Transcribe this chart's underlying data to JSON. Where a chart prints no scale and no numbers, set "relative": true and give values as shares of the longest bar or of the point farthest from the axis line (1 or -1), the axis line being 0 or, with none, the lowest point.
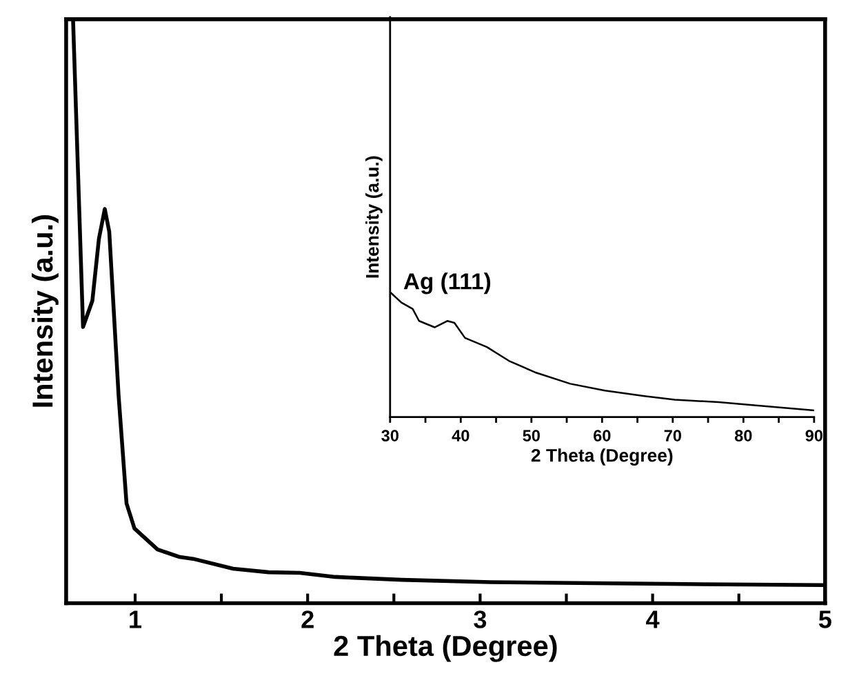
{
  "chart_data": [
    {
      "type": "line",
      "relative": true,
      "xlabel": "2 Theta (Degree)",
      "ylabel": "Intensity (a.u.)",
      "xlim": [
        0.6,
        5.0
      ],
      "xticks": [
        1,
        {
          "value": 1.5,
          "label": null
        },
        2,
        {
          "value": 2.5,
          "label": null
        },
        3,
        {
          "value": 3.5,
          "label": null
        },
        4,
        {
          "value": 4.5,
          "label": null
        },
        5
      ],
      "tick_labels": "x",
      "grid": false,
      "legend": false,
      "series": [
        {
          "color": "#000000",
          "x": [
            0.64,
            0.698,
            0.752,
            0.79,
            0.824,
            0.85,
            0.904,
            0.95,
            0.996,
            1.13,
            1.259,
            1.336,
            1.568,
            1.774,
            1.954,
            2.16,
            2.546,
            3.06,
            4.09,
            4.98
          ],
          "values": [
            1,
            0.473,
            0.518,
            0.624,
            0.675,
            0.636,
            0.356,
            0.171,
            0.128,
            0.092,
            0.079,
            0.076,
            0.059,
            0.053,
            0.052,
            0.045,
            0.04,
            0.036,
            0.033,
            0.031
          ]
        }
      ]
    },
    {
      "type": "line",
      "relative": true,
      "xlabel": "2 Theta (Degree)",
      "ylabel": "Intensity (a.u.)",
      "xlim": [
        30,
        90
      ],
      "xticks": [
        30,
        {
          "value": 35,
          "label": null
        },
        40,
        {
          "value": 45,
          "label": null
        },
        50,
        {
          "value": 55,
          "label": null
        },
        60,
        {
          "value": 65,
          "label": null
        },
        70,
        {
          "value": 75,
          "label": null
        },
        80,
        {
          "value": 85,
          "label": null
        },
        90
      ],
      "tick_labels": "x",
      "grid": false,
      "legend": false,
      "annotations": [
        {
          "text": "Ag (111)",
          "x": 38.1,
          "y": 0.769
        }
      ],
      "series": [
        {
          "color": "#000000",
          "x": [
            30,
            31.6,
            33.2,
            34.1,
            36.3,
            38.1,
            39.1,
            40.6,
            43.7,
            46.8,
            50.5,
            55.5,
            60.4,
            66.0,
            70.3,
            76.5,
            81.5,
            89.9
          ],
          "values": [
            1,
            0.916,
            0.865,
            0.769,
            0.718,
            0.769,
            0.754,
            0.633,
            0.56,
            0.45,
            0.358,
            0.266,
            0.211,
            0.167,
            0.138,
            0.119,
            0.094,
            0.053
          ]
        }
      ]
    }
  ]
}
